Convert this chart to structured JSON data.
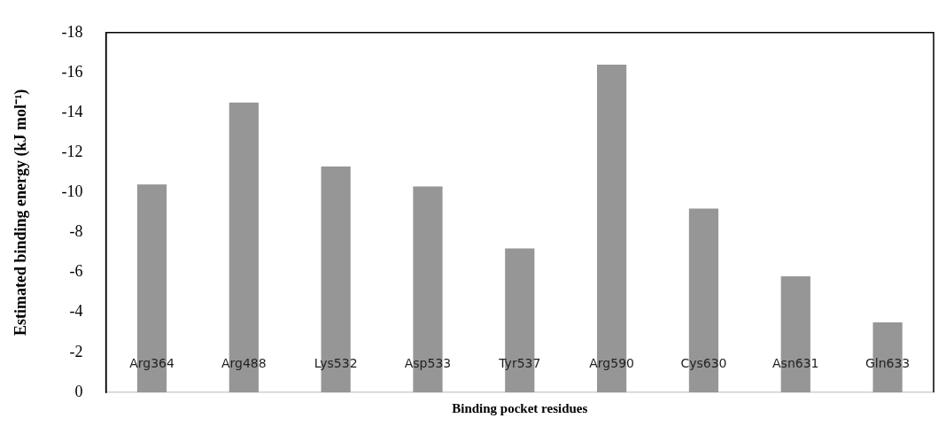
{
  "chart_data": {
    "type": "bar",
    "xlabel": "Binding pocket residues",
    "ylabel": "Estimated binding energy (kJ mol⁻¹)",
    "categories": [
      "Arg364",
      "Arg488",
      "Lys532",
      "Asp533",
      "Tyr537",
      "Arg590",
      "Cys630",
      "Asn631",
      "Gln633"
    ],
    "values": [
      -10.4,
      -14.5,
      -11.3,
      -10.3,
      -7.2,
      -16.4,
      -9.2,
      -5.8,
      -3.5
    ],
    "color": "#969696",
    "ylim": [
      0,
      -18
    ],
    "yticks": [
      0,
      -2,
      -4,
      -6,
      -8,
      -10,
      -12,
      -14,
      -16,
      -18
    ],
    "grid": false,
    "legend": false
  }
}
